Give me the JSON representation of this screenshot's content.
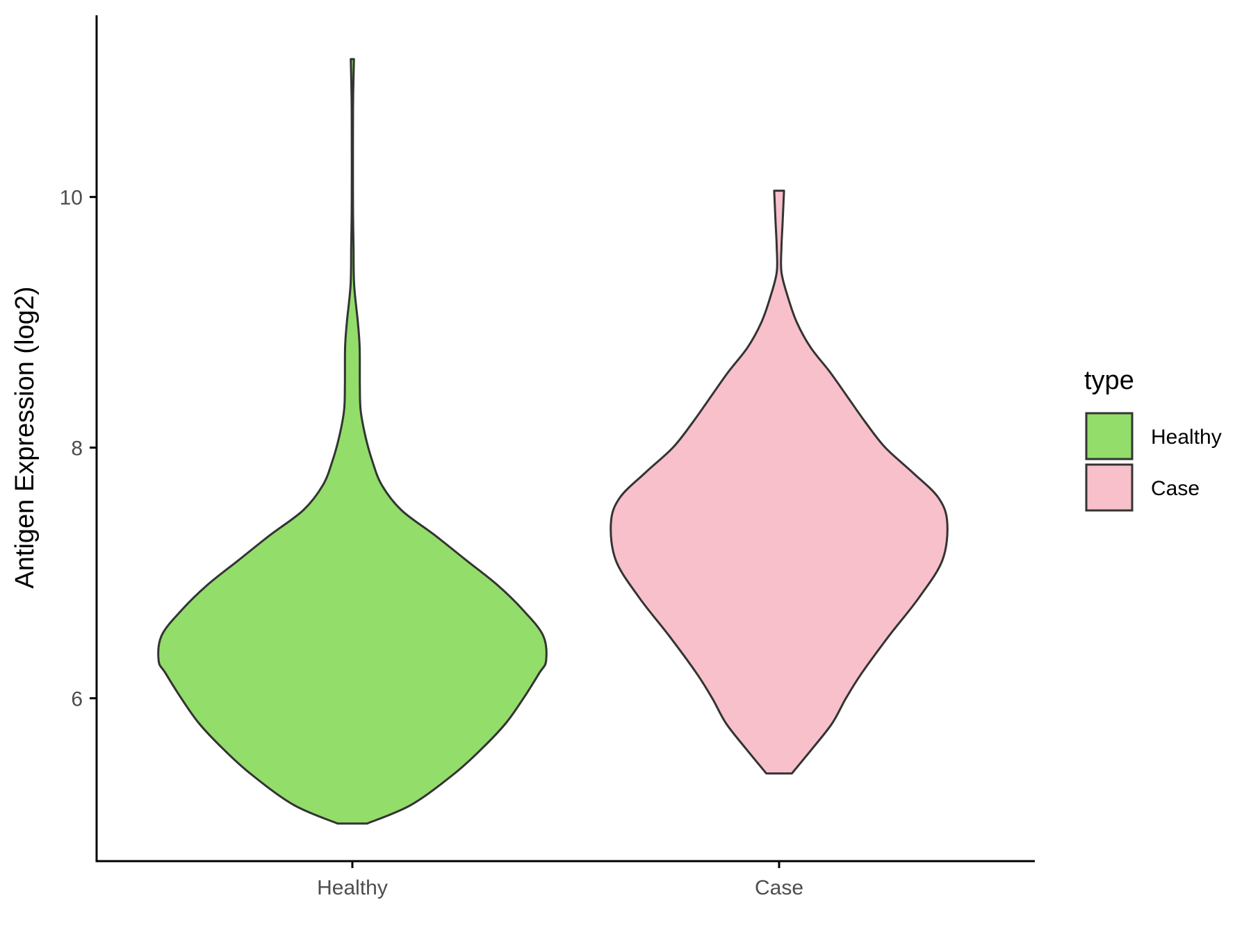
{
  "chart_data": {
    "type": "violin",
    "title": "",
    "xlabel": "",
    "ylabel": "Antigen Expression (log2)",
    "categories": [
      "Healthy",
      "Case"
    ],
    "ylim": [
      4.7,
      11.45
    ],
    "yticks": [
      6,
      8,
      10
    ],
    "grid": false,
    "legend": {
      "title": "type",
      "placement": "right",
      "entries": [
        {
          "label": "Healthy",
          "color": "#93dd6a"
        },
        {
          "label": "Case",
          "color": "#f7c0cb"
        }
      ]
    },
    "outline_color": "#333333",
    "series": [
      {
        "name": "Healthy",
        "color": "#93dd6a",
        "min": 5.0,
        "max": 11.1,
        "profile": [
          [
            5.0,
            0.075
          ],
          [
            5.15,
            0.3
          ],
          [
            5.4,
            0.52
          ],
          [
            5.6,
            0.66
          ],
          [
            5.8,
            0.78
          ],
          [
            6.0,
            0.87
          ],
          [
            6.2,
            0.95
          ],
          [
            6.3,
            0.985
          ],
          [
            6.5,
            0.97
          ],
          [
            6.7,
            0.87
          ],
          [
            6.9,
            0.74
          ],
          [
            7.1,
            0.58
          ],
          [
            7.3,
            0.42
          ],
          [
            7.5,
            0.25
          ],
          [
            7.7,
            0.15
          ],
          [
            7.9,
            0.1
          ],
          [
            8.1,
            0.065
          ],
          [
            8.3,
            0.042
          ],
          [
            8.5,
            0.038
          ],
          [
            8.8,
            0.037
          ],
          [
            9.0,
            0.028
          ],
          [
            9.3,
            0.009
          ],
          [
            9.6,
            0.006
          ],
          [
            9.8,
            0.004
          ],
          [
            10.0,
            0.003
          ],
          [
            10.5,
            0.003
          ],
          [
            10.8,
            0.004
          ],
          [
            11.1,
            0.008
          ]
        ]
      },
      {
        "name": "Case",
        "color": "#f7c0cb",
        "min": 5.4,
        "max": 10.05,
        "profile": [
          [
            5.4,
            0.065
          ],
          [
            5.6,
            0.17
          ],
          [
            5.8,
            0.27
          ],
          [
            6.0,
            0.34
          ],
          [
            6.2,
            0.42
          ],
          [
            6.5,
            0.56
          ],
          [
            6.8,
            0.71
          ],
          [
            7.1,
            0.83
          ],
          [
            7.4,
            0.855
          ],
          [
            7.6,
            0.81
          ],
          [
            7.8,
            0.68
          ],
          [
            8.0,
            0.54
          ],
          [
            8.2,
            0.44
          ],
          [
            8.4,
            0.35
          ],
          [
            8.6,
            0.26
          ],
          [
            8.8,
            0.16
          ],
          [
            9.0,
            0.09
          ],
          [
            9.2,
            0.045
          ],
          [
            9.4,
            0.012
          ],
          [
            9.6,
            0.012
          ],
          [
            9.8,
            0.018
          ],
          [
            10.05,
            0.025
          ]
        ]
      }
    ]
  }
}
